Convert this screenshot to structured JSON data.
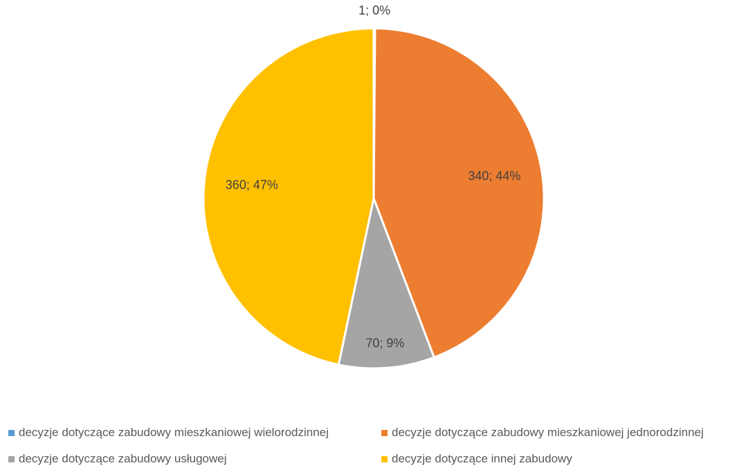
{
  "chart_data": {
    "type": "pie",
    "title": "",
    "slices": [
      {
        "name": "decyzje dotyczące zabudowy mieszkaniowej wielorodzinnej",
        "value": 1,
        "label": "1; 0%",
        "color": "#5B9BD5"
      },
      {
        "name": "decyzje dotyczące zabudowy mieszkaniowej jednorodzinnej",
        "value": 340,
        "label": "340; 44%",
        "color": "#ED7D31"
      },
      {
        "name": "decyzje dotyczące zabudowy usługowej",
        "value": 70,
        "label": "70; 9%",
        "color": "#A5A5A5"
      },
      {
        "name": "decyzje dotyczące innej zabudowy",
        "value": 360,
        "label": "360; 47%",
        "color": "#FFC000"
      }
    ],
    "legend_position": "bottom"
  }
}
